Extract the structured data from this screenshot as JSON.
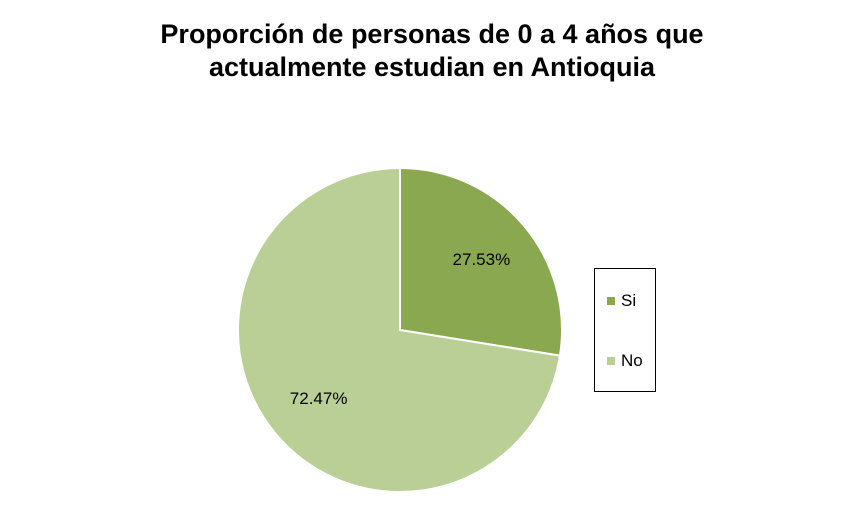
{
  "chart_data": {
    "type": "pie",
    "title_lines": [
      "Proporción de personas de 0 a 4 años que",
      "actualmente estudian en Antioquia"
    ],
    "categories": [
      "Si",
      "No"
    ],
    "values": [
      27.53,
      72.47
    ],
    "data_labels": [
      "27.53%",
      "72.47%"
    ],
    "colors": [
      "#8aa84f",
      "#b9cf96"
    ],
    "slice_border": "#ffffff",
    "legend_position": "right",
    "start_angle": "12 o'clock, clockwise"
  }
}
